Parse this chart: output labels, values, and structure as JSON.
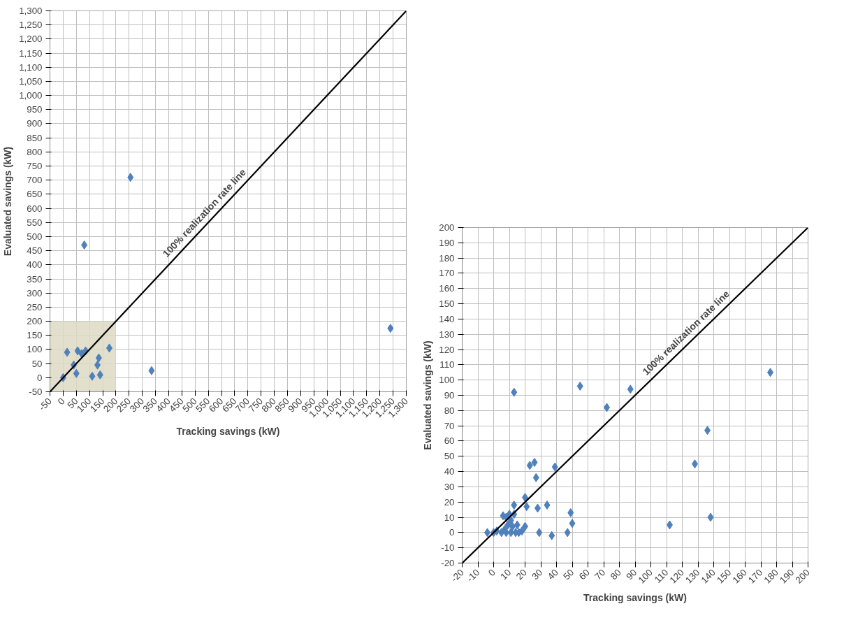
{
  "chart_data": [
    {
      "type": "scatter",
      "xlabel": "Tracking savings (kW)",
      "ylabel": "Evaluated savings (kW)",
      "marker": "diamond",
      "grid": true,
      "xlim": [
        -50,
        1300
      ],
      "ylim": [
        -50,
        1300
      ],
      "xticks": [
        -50,
        0,
        50,
        100,
        150,
        200,
        250,
        300,
        350,
        400,
        450,
        500,
        550,
        600,
        650,
        700,
        750,
        800,
        850,
        900,
        950,
        {
          "value": 1000,
          "label": "1,000"
        },
        {
          "value": 1050,
          "label": "1,050"
        },
        {
          "value": 1100,
          "label": "1,100"
        },
        {
          "value": 1150,
          "label": "1,150"
        },
        {
          "value": 1200,
          "label": "1,200"
        },
        {
          "value": 1250,
          "label": "1,250"
        },
        {
          "value": 1300,
          "label": "1,300"
        }
      ],
      "yticks": [
        -50,
        0,
        50,
        100,
        150,
        200,
        250,
        300,
        350,
        400,
        450,
        500,
        550,
        600,
        650,
        700,
        750,
        800,
        850,
        900,
        950,
        {
          "value": 1000,
          "label": "1,000"
        },
        {
          "value": 1050,
          "label": "1,050"
        },
        {
          "value": 1100,
          "label": "1,100"
        },
        {
          "value": 1150,
          "label": "1,150"
        },
        {
          "value": 1200,
          "label": "1,200"
        },
        {
          "value": 1250,
          "label": "1,250"
        },
        {
          "value": 1300,
          "label": "1,300"
        }
      ],
      "annotations": [
        {
          "text": "100% realization rate line",
          "x": 410,
          "y": 410
        }
      ],
      "bands": [
        {
          "axis": "x",
          "from": -50,
          "to": 200,
          "color": "#ddd9c3"
        }
      ],
      "series": [
        {
          "color": "#4f81bd",
          "x": [
            80,
            255,
            335,
            1240,
            15,
            55,
            85,
            70,
            175,
            135,
            130,
            140,
            110,
            40,
            0,
            50
          ],
          "values": [
            470,
            710,
            25,
            175,
            90,
            95,
            95,
            85,
            105,
            70,
            45,
            10,
            5,
            45,
            0,
            15
          ]
        },
        {
          "type": "line",
          "color": "#000000",
          "marker": "none",
          "x": [
            -50,
            1300
          ],
          "values": [
            -50,
            1300
          ]
        }
      ]
    },
    {
      "type": "scatter",
      "xlabel": "Tracking savings (kW)",
      "ylabel": "Evaluated savings (kW)",
      "marker": "diamond",
      "grid": true,
      "xlim": [
        -20,
        200
      ],
      "ylim": [
        -20,
        200
      ],
      "xticks": [
        -20,
        -10,
        0,
        10,
        20,
        30,
        40,
        50,
        60,
        70,
        80,
        90,
        100,
        110,
        120,
        130,
        140,
        150,
        160,
        170,
        180,
        190,
        200
      ],
      "yticks": [
        -20,
        -10,
        0,
        10,
        20,
        30,
        40,
        50,
        60,
        70,
        80,
        90,
        100,
        110,
        120,
        130,
        140,
        150,
        160,
        170,
        180,
        190,
        200
      ],
      "annotations": [
        {
          "text": "100% realization rate line",
          "x": 100,
          "y": 100
        }
      ],
      "series": [
        {
          "color": "#4f81bd",
          "x": [
            13,
            55,
            87,
            72,
            176,
            136,
            128,
            138,
            112,
            39,
            26,
            23,
            27,
            20,
            21,
            13,
            34,
            28,
            49,
            50,
            47,
            37,
            29,
            -4,
            0,
            2,
            6,
            8,
            10,
            11,
            13,
            5,
            8,
            11,
            14,
            16,
            18,
            20,
            15,
            12,
            9,
            7
          ],
          "values": [
            92,
            96,
            94,
            82,
            105,
            67,
            45,
            10,
            5,
            43,
            46,
            44,
            36,
            23,
            17,
            18,
            18,
            16,
            13,
            6,
            0,
            -2,
            0,
            0,
            0,
            1,
            11,
            10,
            12,
            8,
            12,
            0,
            0,
            0,
            0,
            0,
            1,
            4,
            5,
            4,
            5,
            2
          ]
        },
        {
          "type": "line",
          "color": "#000000",
          "marker": "none",
          "x": [
            -20,
            200
          ],
          "values": [
            -20,
            200
          ]
        }
      ]
    }
  ]
}
